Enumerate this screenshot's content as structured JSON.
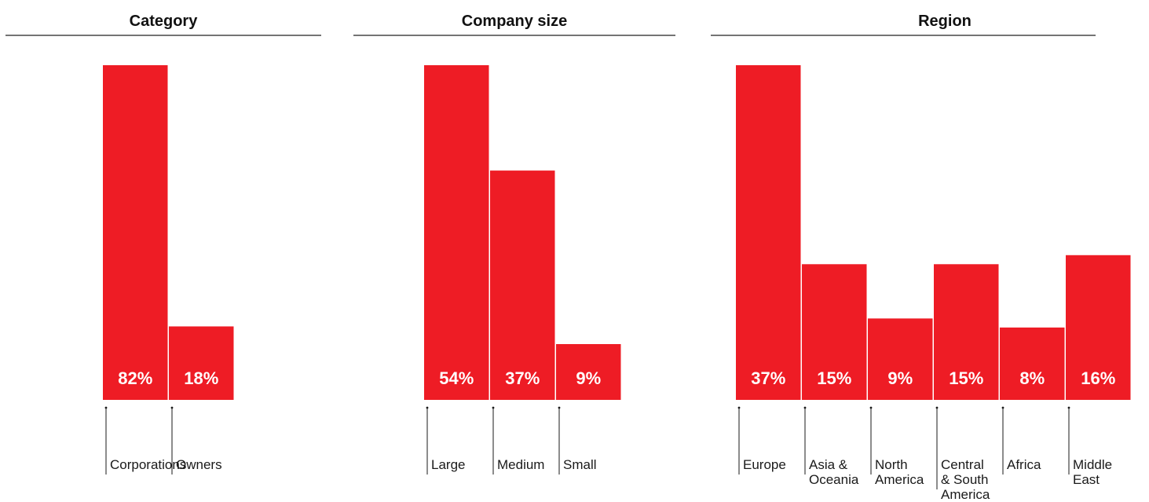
{
  "chart_data": [
    {
      "type": "bar",
      "title": "Category",
      "categories": [
        [
          "Corporations"
        ],
        [
          "Owners"
        ]
      ],
      "values": [
        82,
        18
      ],
      "value_labels": [
        "82%",
        "18%"
      ],
      "ylim": [
        0,
        82
      ],
      "bar_color": "#ee1c25"
    },
    {
      "type": "bar",
      "title": "Company size",
      "categories": [
        [
          "Large"
        ],
        [
          "Medium"
        ],
        [
          "Small"
        ]
      ],
      "values": [
        54,
        37,
        9
      ],
      "value_labels": [
        "54%",
        "37%",
        "9%"
      ],
      "ylim": [
        0,
        54
      ],
      "bar_color": "#ee1c25"
    },
    {
      "type": "bar",
      "title": "Region",
      "categories": [
        [
          "Europe"
        ],
        [
          "Asia &",
          "Oceania"
        ],
        [
          "North",
          "America"
        ],
        [
          "Central",
          "& South",
          "America"
        ],
        [
          "Africa"
        ],
        [
          "Middle",
          "East"
        ]
      ],
      "values": [
        37,
        15,
        9,
        15,
        8,
        16
      ],
      "value_labels": [
        "37%",
        "15%",
        "9%",
        "15%",
        "8%",
        "16%"
      ],
      "ylim": [
        0,
        37
      ],
      "bar_color": "#ee1c25"
    }
  ]
}
